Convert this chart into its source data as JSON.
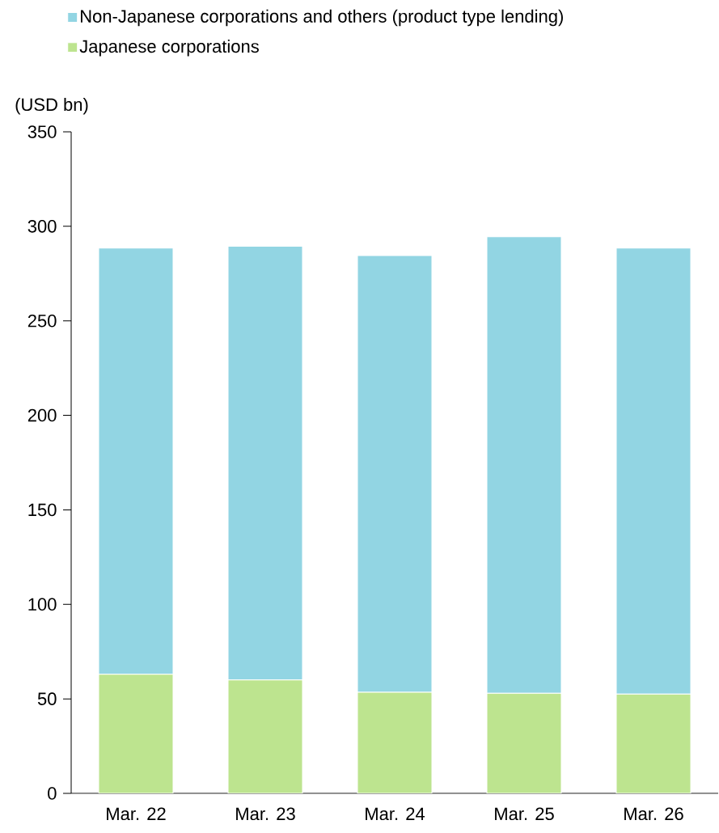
{
  "chart_data": {
    "type": "bar",
    "stacked": true,
    "ylabel": "(USD bn)",
    "categories": [
      "Mar. 22",
      "Mar. 23",
      "Mar. 24",
      "Mar. 25",
      "Mar. 26"
    ],
    "series": [
      {
        "name": "Japanese corporations",
        "color": "#bde48f",
        "values": [
          63,
          60,
          53.5,
          53,
          52.5
        ]
      },
      {
        "name": "Non-Japanese corporations and others (product type lending)",
        "color": "#92d5e3",
        "values": [
          225.5,
          229.5,
          231,
          241.5,
          236
        ]
      }
    ],
    "ylim": [
      0,
      350
    ],
    "yticks": [
      0,
      50,
      100,
      150,
      200,
      250,
      300,
      350
    ],
    "legend": "top left",
    "grid": false
  }
}
